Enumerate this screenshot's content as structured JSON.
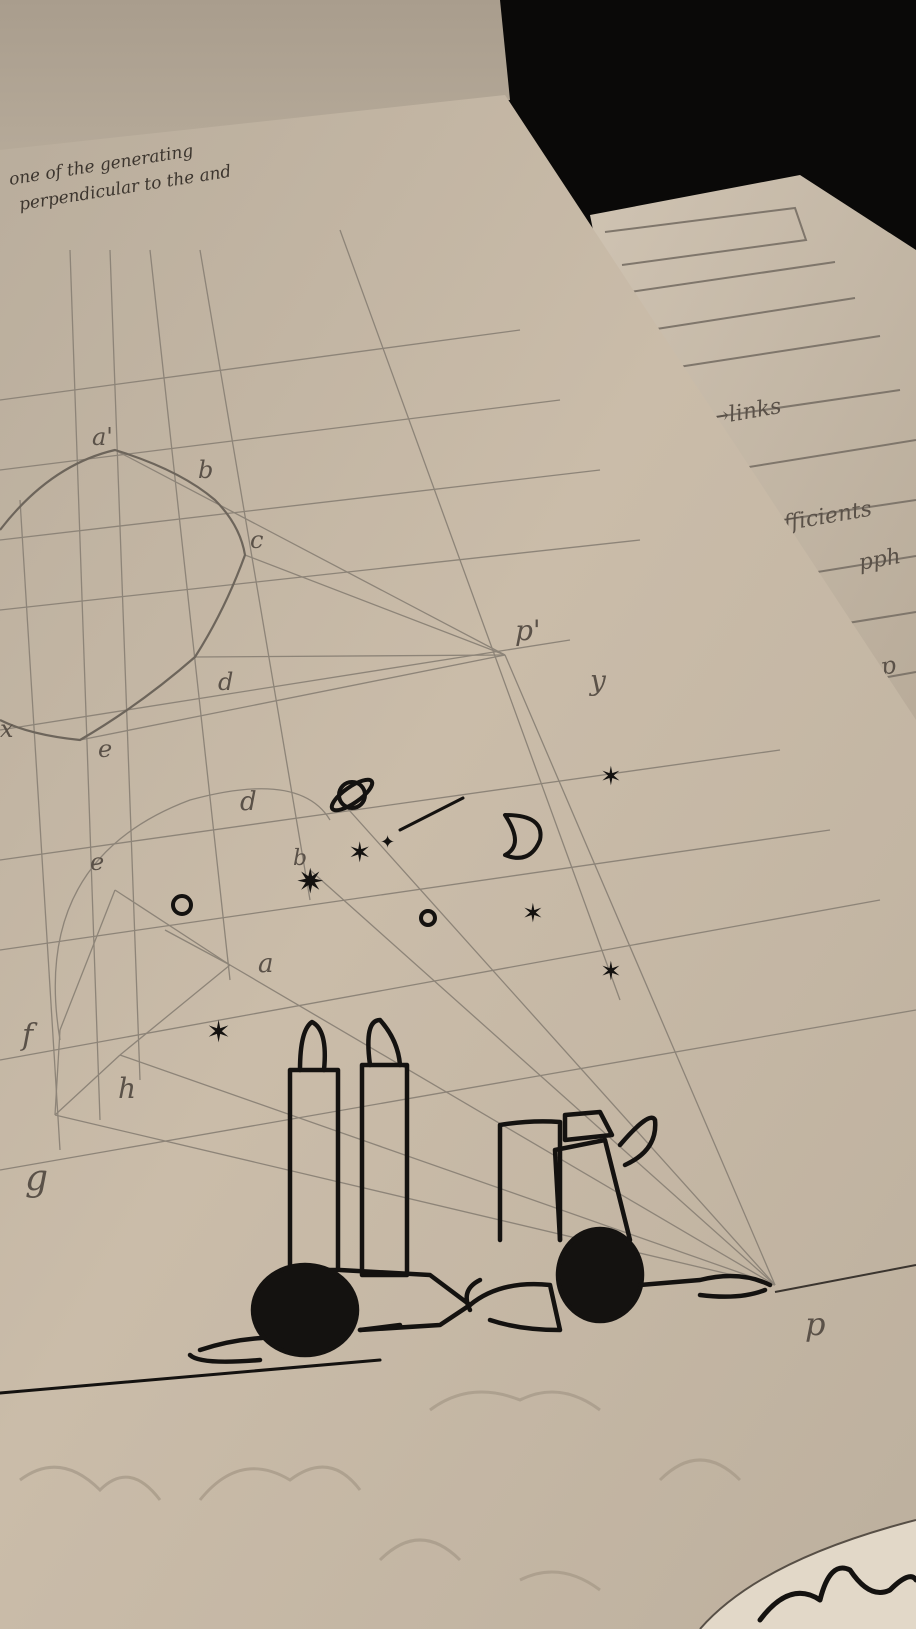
{
  "page_top": {
    "line1": "one of the generating",
    "line2": "perpendicular to the and"
  },
  "right_page": {
    "note1": "→links",
    "note2": "efficients",
    "note3": "pph",
    "note4": "p"
  },
  "labels": {
    "a_prime": "a'",
    "b_upper": "b",
    "c_upper": "c",
    "d_upper": "d",
    "e_upper": "e",
    "x_left": "x",
    "p_prime": "p'",
    "y": "y",
    "d_lower": "d",
    "e_lower": "e",
    "b_lower": "b",
    "a_lower": "a",
    "f": "f",
    "h": "h",
    "g": "g",
    "p": "p"
  },
  "colors": {
    "paper": "#cdc0ae",
    "paper_shadow": "#9b8f80",
    "pencil": "#8d8478",
    "ink": "#141210",
    "background": "#0a0908"
  },
  "icons": {
    "saturn": "saturn-doodle-icon",
    "moon": "crescent-moon-icon",
    "star": "star-doodle-icon"
  }
}
